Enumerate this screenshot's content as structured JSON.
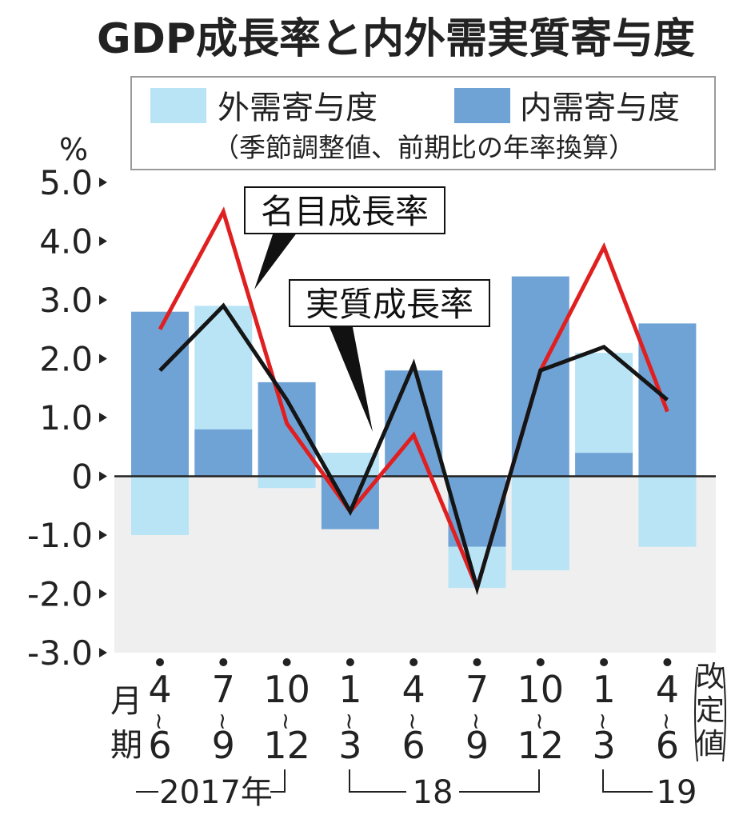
{
  "chart_data": {
    "type": "bar",
    "title": "GDP成長率と内外需実質寄与度",
    "legend": {
      "items": [
        {
          "name": "外需寄与度",
          "color": "#b8e4f5"
        },
        {
          "name": "内需寄与度",
          "color": "#6fa3d6"
        }
      ],
      "note": "（季節調整値、前期比の年率換算）"
    },
    "ylabel": "%",
    "ylim": [
      -3.0,
      5.0
    ],
    "yticks": [
      {
        "value": 5.0,
        "label": "5.0"
      },
      {
        "value": 4.0,
        "label": "4.0"
      },
      {
        "value": 3.0,
        "label": "3.0"
      },
      {
        "value": 2.0,
        "label": "2.0"
      },
      {
        "value": 1.0,
        "label": "1.0"
      },
      {
        "value": 0,
        "label": "0"
      },
      {
        "value": -1.0,
        "label": "-1.0"
      },
      {
        "value": -2.0,
        "label": "-2.0"
      },
      {
        "value": -3.0,
        "label": "-3.0"
      }
    ],
    "categories": [
      {
        "top": "4",
        "bottom": "6"
      },
      {
        "top": "7",
        "bottom": "9"
      },
      {
        "top": "10",
        "bottom": "12"
      },
      {
        "top": "1",
        "bottom": "3"
      },
      {
        "top": "4",
        "bottom": "6"
      },
      {
        "top": "7",
        "bottom": "9"
      },
      {
        "top": "10",
        "bottom": "12"
      },
      {
        "top": "1",
        "bottom": "3"
      },
      {
        "top": "4",
        "bottom": "6"
      }
    ],
    "tilde": "~",
    "month_label": [
      "月",
      "期"
    ],
    "revised_label": [
      "改",
      "定",
      "値"
    ],
    "year_labels": [
      "2017年",
      "18",
      "19"
    ],
    "series": [
      {
        "name": "内需寄与度",
        "values": [
          2.8,
          0.8,
          1.6,
          -0.9,
          1.8,
          -1.2,
          3.4,
          0.4,
          2.6
        ]
      },
      {
        "name": "外需寄与度",
        "values": [
          -1.0,
          2.1,
          -0.2,
          0.4,
          0.0,
          -0.7,
          -1.6,
          1.7,
          -1.2
        ]
      },
      {
        "name": "名目成長率",
        "values": [
          2.5,
          4.5,
          0.9,
          -0.6,
          0.7,
          -1.9,
          1.8,
          3.9,
          1.1
        ]
      },
      {
        "name": "実質成長率",
        "values": [
          1.8,
          2.9,
          1.3,
          -0.6,
          1.9,
          -1.9,
          1.8,
          2.2,
          1.3
        ]
      }
    ],
    "annotations": [
      {
        "text": "名目成長率",
        "target_series": "名目成長率"
      },
      {
        "text": "実質成長率",
        "target_series": "実質成長率"
      }
    ],
    "colors": {
      "domestic": "#6fa3d6",
      "external": "#b8e4f5",
      "nominal": "#e02020",
      "real": "#151515",
      "negative_bg": "#efefef"
    }
  }
}
